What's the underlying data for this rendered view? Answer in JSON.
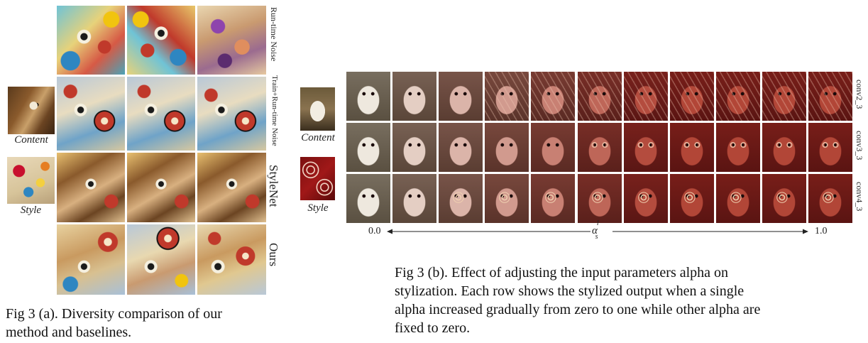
{
  "figure_a": {
    "content_label": "Content",
    "style_label": "Style",
    "row_labels": [
      "Run-time Noise",
      "Train+Run-time Noise",
      "StyleNet",
      "Ours"
    ],
    "caption": "Fig 3 (a). Diversity comparison of our method and baselines.",
    "caption_lines": [
      "Fig 3 (a). Diversity comparison of our",
      "method and baselines."
    ]
  },
  "figure_b": {
    "content_label": "Content",
    "style_label": "Style",
    "row_labels": [
      "conv2_3",
      "conv3_3",
      "conv4_3"
    ],
    "axis_start": "0.0",
    "axis_end": "1.0",
    "axis_symbol": "α",
    "axis_symbol_sup": "l",
    "axis_symbol_sub": "s",
    "caption_lines": [
      "Fig 3 (b). Effect of adjusting the input parameters alpha on",
      "stylization. Each row shows the stylized output when a single",
      "alpha increased gradually from zero to one while other alpha are",
      "fixed to zero."
    ]
  }
}
